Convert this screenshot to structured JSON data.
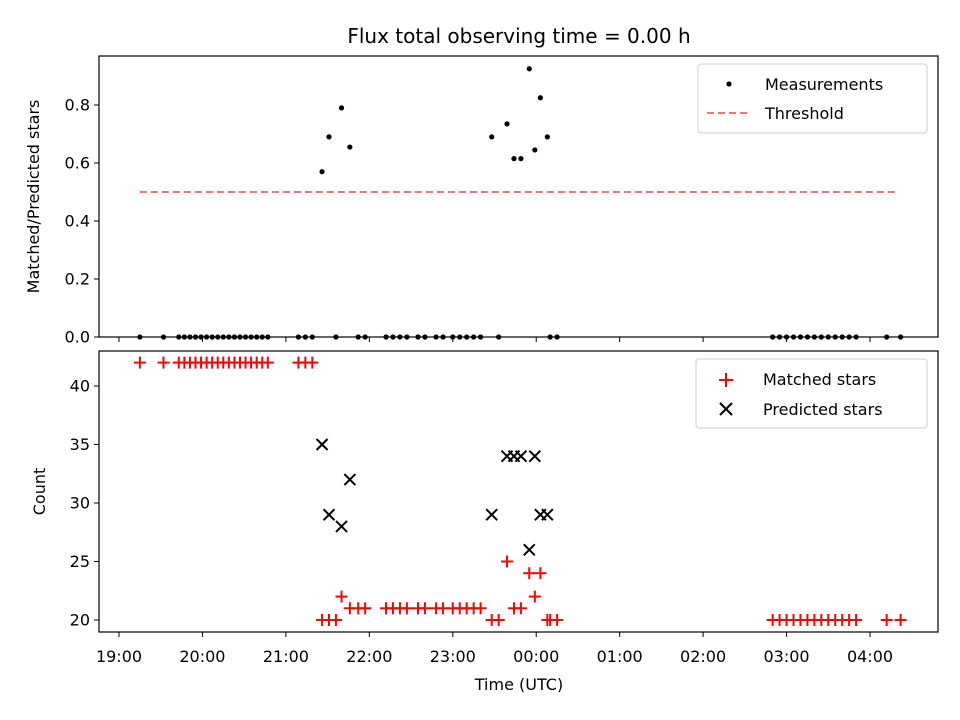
{
  "chart_data": [
    {
      "type": "scatter",
      "title": "Flux total observing time = 0.00 h",
      "xlabel": "",
      "ylabel": "Matched/Predicted stars",
      "xlim": [
        "19:00",
        "04:48"
      ],
      "ylim": [
        0,
        0.97
      ],
      "yticks": [
        "0.0",
        "0.2",
        "0.4",
        "0.6",
        "0.8"
      ],
      "grid": false,
      "legend_position": "upper right",
      "series": [
        {
          "name": "Measurements",
          "style": "dots",
          "color": "#000000",
          "points": [
            [
              "19:15",
              0
            ],
            [
              "19:32",
              0
            ],
            [
              "19:43",
              0
            ],
            [
              "19:47",
              0
            ],
            [
              "19:51",
              0
            ],
            [
              "19:55",
              0
            ],
            [
              "19:59",
              0
            ],
            [
              "20:03",
              0
            ],
            [
              "20:07",
              0
            ],
            [
              "20:11",
              0
            ],
            [
              "20:15",
              0
            ],
            [
              "20:19",
              0
            ],
            [
              "20:23",
              0
            ],
            [
              "20:27",
              0
            ],
            [
              "20:31",
              0
            ],
            [
              "20:35",
              0
            ],
            [
              "20:39",
              0
            ],
            [
              "20:43",
              0
            ],
            [
              "20:47",
              0
            ],
            [
              "21:09",
              0
            ],
            [
              "21:14",
              0
            ],
            [
              "21:19",
              0
            ],
            [
              "21:26",
              0.57
            ],
            [
              "21:31",
              0.69
            ],
            [
              "21:40",
              0.79
            ],
            [
              "21:46",
              0.655
            ],
            [
              "21:36",
              0
            ],
            [
              "21:52",
              0
            ],
            [
              "21:57",
              0
            ],
            [
              "22:12",
              0
            ],
            [
              "22:17",
              0
            ],
            [
              "22:22",
              0
            ],
            [
              "22:27",
              0
            ],
            [
              "22:35",
              0
            ],
            [
              "22:40",
              0
            ],
            [
              "22:48",
              0
            ],
            [
              "22:53",
              0
            ],
            [
              "23:00",
              0
            ],
            [
              "23:05",
              0
            ],
            [
              "23:10",
              0
            ],
            [
              "23:15",
              0
            ],
            [
              "23:20",
              0
            ],
            [
              "23:28",
              0.69
            ],
            [
              "23:33",
              0
            ],
            [
              "23:39",
              0.735
            ],
            [
              "23:44",
              0.615
            ],
            [
              "23:49",
              0.615
            ],
            [
              "23:55",
              0.925
            ],
            [
              "23:59",
              0.645
            ],
            [
              "00:03",
              0.825
            ],
            [
              "00:08",
              0.69
            ],
            [
              "00:10",
              0
            ],
            [
              "00:15",
              0
            ],
            [
              "02:50",
              0
            ],
            [
              "02:55",
              0
            ],
            [
              "03:00",
              0
            ],
            [
              "03:05",
              0
            ],
            [
              "03:10",
              0
            ],
            [
              "03:15",
              0
            ],
            [
              "03:20",
              0
            ],
            [
              "03:25",
              0
            ],
            [
              "03:30",
              0
            ],
            [
              "03:35",
              0
            ],
            [
              "03:40",
              0
            ],
            [
              "03:45",
              0
            ],
            [
              "03:50",
              0
            ],
            [
              "04:12",
              0
            ],
            [
              "04:22",
              0
            ]
          ]
        },
        {
          "name": "Threshold",
          "style": "dashed-line",
          "color": "#ff7070",
          "points": [
            [
              "19:15",
              0.5
            ],
            [
              "04:18",
              0.5
            ]
          ]
        }
      ]
    },
    {
      "type": "scatter",
      "title": "",
      "xlabel": "Time (UTC)",
      "ylabel": "Count",
      "xlim": [
        "19:00",
        "04:48"
      ],
      "ylim": [
        19,
        43.2
      ],
      "xticks": [
        "19:00",
        "20:00",
        "21:00",
        "22:00",
        "23:00",
        "00:00",
        "01:00",
        "02:00",
        "03:00",
        "04:00"
      ],
      "yticks": [
        "20",
        "25",
        "30",
        "35",
        "40"
      ],
      "grid": false,
      "legend_position": "upper right",
      "series": [
        {
          "name": "Matched stars",
          "style": "plus",
          "color": "#ff0000",
          "points": [
            [
              "19:15",
              42
            ],
            [
              "19:32",
              42
            ],
            [
              "19:43",
              42
            ],
            [
              "19:47",
              42
            ],
            [
              "19:51",
              42
            ],
            [
              "19:55",
              42
            ],
            [
              "19:59",
              42
            ],
            [
              "20:03",
              42
            ],
            [
              "20:07",
              42
            ],
            [
              "20:11",
              42
            ],
            [
              "20:15",
              42
            ],
            [
              "20:19",
              42
            ],
            [
              "20:23",
              42
            ],
            [
              "20:27",
              42
            ],
            [
              "20:31",
              42
            ],
            [
              "20:35",
              42
            ],
            [
              "20:39",
              42
            ],
            [
              "20:43",
              42
            ],
            [
              "20:47",
              42
            ],
            [
              "21:09",
              42
            ],
            [
              "21:14",
              42
            ],
            [
              "21:19",
              42
            ],
            [
              "21:26",
              20
            ],
            [
              "21:31",
              20
            ],
            [
              "21:36",
              20
            ],
            [
              "21:40",
              22
            ],
            [
              "21:46",
              21
            ],
            [
              "21:52",
              21
            ],
            [
              "21:57",
              21
            ],
            [
              "22:12",
              21
            ],
            [
              "22:17",
              21
            ],
            [
              "22:22",
              21
            ],
            [
              "22:27",
              21
            ],
            [
              "22:35",
              21
            ],
            [
              "22:40",
              21
            ],
            [
              "22:48",
              21
            ],
            [
              "22:53",
              21
            ],
            [
              "23:00",
              21
            ],
            [
              "23:05",
              21
            ],
            [
              "23:10",
              21
            ],
            [
              "23:15",
              21
            ],
            [
              "23:20",
              21
            ],
            [
              "23:28",
              20
            ],
            [
              "23:33",
              20
            ],
            [
              "23:39",
              25
            ],
            [
              "23:44",
              21
            ],
            [
              "23:49",
              21
            ],
            [
              "23:55",
              24
            ],
            [
              "23:59",
              22
            ],
            [
              "00:03",
              24
            ],
            [
              "00:08",
              20
            ],
            [
              "00:10",
              20
            ],
            [
              "00:15",
              20
            ],
            [
              "02:50",
              20
            ],
            [
              "02:55",
              20
            ],
            [
              "03:00",
              20
            ],
            [
              "03:05",
              20
            ],
            [
              "03:10",
              20
            ],
            [
              "03:15",
              20
            ],
            [
              "03:20",
              20
            ],
            [
              "03:25",
              20
            ],
            [
              "03:30",
              20
            ],
            [
              "03:35",
              20
            ],
            [
              "03:40",
              20
            ],
            [
              "03:45",
              20
            ],
            [
              "03:50",
              20
            ],
            [
              "04:12",
              20
            ],
            [
              "04:22",
              20
            ]
          ]
        },
        {
          "name": "Predicted stars",
          "style": "x",
          "color": "#000000",
          "points": [
            [
              "21:26",
              35
            ],
            [
              "21:31",
              29
            ],
            [
              "21:40",
              28
            ],
            [
              "21:46",
              32
            ],
            [
              "23:28",
              29
            ],
            [
              "23:39",
              34
            ],
            [
              "23:44",
              34
            ],
            [
              "23:49",
              34
            ],
            [
              "23:55",
              26
            ],
            [
              "23:59",
              34
            ],
            [
              "00:03",
              29
            ],
            [
              "00:08",
              29
            ]
          ]
        }
      ]
    }
  ]
}
